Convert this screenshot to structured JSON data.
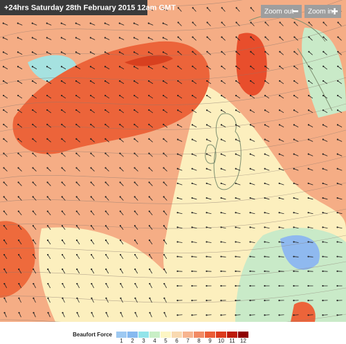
{
  "header": {
    "title": "+24hrs Saturday 28th February 2015 12am GMT"
  },
  "controls": {
    "zoom_out": "Zoom out",
    "zoom_in": "Zoom in"
  },
  "legend": {
    "title": "Beaufort Force",
    "items": [
      {
        "label": "1",
        "color": "#9ec9f2"
      },
      {
        "label": "2",
        "color": "#86b9f0"
      },
      {
        "label": "3",
        "color": "#93e4ea"
      },
      {
        "label": "4",
        "color": "#c9efc6"
      },
      {
        "label": "5",
        "color": "#fdf6c4"
      },
      {
        "label": "6",
        "color": "#f9d9b0"
      },
      {
        "label": "7",
        "color": "#f7b48f"
      },
      {
        "label": "8",
        "color": "#f28a64"
      },
      {
        "label": "9",
        "color": "#eb5c36"
      },
      {
        "label": "10",
        "color": "#dc3a1c"
      },
      {
        "label": "11",
        "color": "#bd1a08"
      },
      {
        "label": "12",
        "color": "#8e0000"
      }
    ]
  }
}
